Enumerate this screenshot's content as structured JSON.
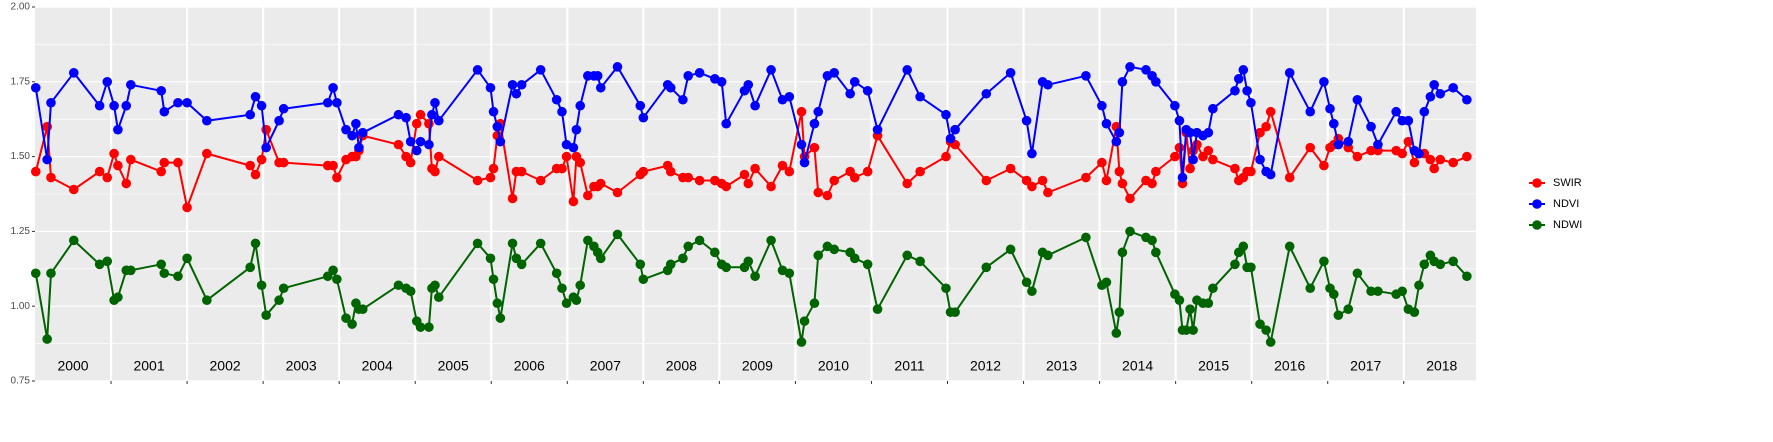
{
  "chart_data": {
    "type": "line",
    "year_labels": [
      "2000",
      "2001",
      "2002",
      "2003",
      "2004",
      "2005",
      "2006",
      "2007",
      "2008",
      "2009",
      "2010",
      "2011",
      "2012",
      "2013",
      "2014",
      "2015",
      "2016",
      "2017",
      "2018"
    ],
    "x": [
      2000.01,
      2000.16,
      2000.21,
      2000.51,
      2000.85,
      2000.95,
      2001.04,
      2001.09,
      2001.2,
      2001.26,
      2001.66,
      2001.7,
      2001.88,
      2002.0,
      2002.26,
      2002.83,
      2002.9,
      2002.98,
      2003.04,
      2003.21,
      2003.27,
      2003.85,
      2003.92,
      2003.97,
      2004.09,
      2004.17,
      2004.22,
      2004.26,
      2004.31,
      2004.78,
      2004.88,
      2004.94,
      2005.02,
      2005.07,
      2005.18,
      2005.22,
      2005.26,
      2005.31,
      2005.82,
      2005.99,
      2006.03,
      2006.08,
      2006.12,
      2006.28,
      2006.33,
      2006.4,
      2006.65,
      2006.86,
      2006.93,
      2006.99,
      2007.08,
      2007.12,
      2007.17,
      2007.27,
      2007.35,
      2007.4,
      2007.44,
      2007.66,
      2007.96,
      2008.0,
      2008.32,
      2008.36,
      2008.52,
      2008.59,
      2008.74,
      2008.94,
      2009.03,
      2009.09,
      2009.33,
      2009.38,
      2009.47,
      2009.68,
      2009.83,
      2009.92,
      2010.08,
      2010.12,
      2010.25,
      2010.3,
      2010.42,
      2010.51,
      2010.72,
      2010.78,
      2010.95,
      2011.08,
      2011.47,
      2011.64,
      2011.98,
      2012.04,
      2012.1,
      2012.51,
      2012.83,
      2013.04,
      2013.11,
      2013.25,
      2013.32,
      2013.82,
      2014.03,
      2014.09,
      2014.22,
      2014.26,
      2014.3,
      2014.4,
      2014.61,
      2014.69,
      2014.74,
      2014.99,
      2015.05,
      2015.09,
      2015.14,
      2015.19,
      2015.23,
      2015.28,
      2015.36,
      2015.43,
      2015.49,
      2015.78,
      2015.83,
      2015.89,
      2015.94,
      2015.99,
      2016.11,
      2016.19,
      2016.25,
      2016.5,
      2016.77,
      2016.95,
      2017.03,
      2017.08,
      2017.14,
      2017.27,
      2017.39,
      2017.57,
      2017.66,
      2017.9,
      2017.98,
      2018.06,
      2018.14,
      2018.2,
      2018.27,
      2018.35,
      2018.4,
      2018.48,
      2018.65,
      2018.83
    ],
    "series": [
      {
        "name": "SWIR",
        "color": "#ff0000",
        "values": [
          1.45,
          1.6,
          1.43,
          1.39,
          1.45,
          1.43,
          1.51,
          1.47,
          1.41,
          1.49,
          1.45,
          1.48,
          1.48,
          1.33,
          1.51,
          1.47,
          1.44,
          1.49,
          1.59,
          1.48,
          1.48,
          1.47,
          1.47,
          1.43,
          1.49,
          1.5,
          1.5,
          1.52,
          1.57,
          1.54,
          1.5,
          1.48,
          1.61,
          1.64,
          1.61,
          1.46,
          1.45,
          1.5,
          1.42,
          1.43,
          1.46,
          1.57,
          1.61,
          1.36,
          1.45,
          1.45,
          1.42,
          1.46,
          1.46,
          1.5,
          1.35,
          1.5,
          1.48,
          1.37,
          1.4,
          1.4,
          1.41,
          1.38,
          1.44,
          1.45,
          1.47,
          1.45,
          1.43,
          1.43,
          1.42,
          1.42,
          1.41,
          1.4,
          1.44,
          1.41,
          1.46,
          1.4,
          1.47,
          1.45,
          1.65,
          1.5,
          1.53,
          1.38,
          1.37,
          1.42,
          1.45,
          1.43,
          1.45,
          1.57,
          1.41,
          1.45,
          1.5,
          1.55,
          1.54,
          1.42,
          1.46,
          1.42,
          1.4,
          1.42,
          1.38,
          1.43,
          1.48,
          1.42,
          1.6,
          1.45,
          1.41,
          1.36,
          1.42,
          1.41,
          1.45,
          1.5,
          1.53,
          1.41,
          1.58,
          1.46,
          1.52,
          1.54,
          1.5,
          1.52,
          1.49,
          1.46,
          1.42,
          1.43,
          1.45,
          1.45,
          1.58,
          1.6,
          1.65,
          1.43,
          1.53,
          1.47,
          1.53,
          1.54,
          1.56,
          1.53,
          1.5,
          1.52,
          1.52,
          1.52,
          1.51,
          1.55,
          1.48,
          1.51,
          1.51,
          1.49,
          1.46,
          1.49,
          1.48,
          1.5
        ]
      },
      {
        "name": "NDVI",
        "color": "#0000ff",
        "values": [
          1.73,
          1.49,
          1.68,
          1.78,
          1.67,
          1.75,
          1.67,
          1.59,
          1.67,
          1.74,
          1.72,
          1.65,
          1.68,
          1.68,
          1.62,
          1.64,
          1.7,
          1.67,
          1.53,
          1.62,
          1.66,
          1.68,
          1.73,
          1.68,
          1.59,
          1.57,
          1.61,
          1.53,
          1.58,
          1.64,
          1.63,
          1.55,
          1.52,
          1.55,
          1.54,
          1.64,
          1.68,
          1.62,
          1.79,
          1.73,
          1.65,
          1.6,
          1.55,
          1.74,
          1.71,
          1.74,
          1.79,
          1.69,
          1.65,
          1.54,
          1.53,
          1.59,
          1.67,
          1.77,
          1.77,
          1.77,
          1.73,
          1.8,
          1.67,
          1.63,
          1.74,
          1.73,
          1.69,
          1.77,
          1.78,
          1.76,
          1.75,
          1.61,
          1.72,
          1.74,
          1.67,
          1.79,
          1.69,
          1.7,
          1.54,
          1.48,
          1.61,
          1.65,
          1.77,
          1.78,
          1.71,
          1.75,
          1.72,
          1.59,
          1.79,
          1.7,
          1.64,
          1.56,
          1.59,
          1.71,
          1.78,
          1.62,
          1.51,
          1.75,
          1.74,
          1.77,
          1.67,
          1.61,
          1.55,
          1.58,
          1.75,
          1.8,
          1.79,
          1.77,
          1.75,
          1.67,
          1.62,
          1.43,
          1.59,
          1.58,
          1.49,
          1.58,
          1.57,
          1.58,
          1.66,
          1.72,
          1.76,
          1.79,
          1.72,
          1.68,
          1.49,
          1.45,
          1.44,
          1.78,
          1.65,
          1.75,
          1.66,
          1.61,
          1.54,
          1.55,
          1.69,
          1.6,
          1.54,
          1.65,
          1.62,
          1.62,
          1.52,
          1.51,
          1.65,
          1.7,
          1.74,
          1.71,
          1.73,
          1.69
        ]
      },
      {
        "name": "NDWI",
        "color": "#006400",
        "values": [
          1.11,
          0.89,
          1.11,
          1.22,
          1.14,
          1.15,
          1.02,
          1.03,
          1.12,
          1.12,
          1.14,
          1.11,
          1.1,
          1.16,
          1.02,
          1.13,
          1.21,
          1.07,
          0.97,
          1.02,
          1.06,
          1.1,
          1.12,
          1.09,
          0.96,
          0.94,
          1.01,
          0.99,
          0.99,
          1.07,
          1.06,
          1.05,
          0.95,
          0.93,
          0.93,
          1.06,
          1.07,
          1.03,
          1.21,
          1.16,
          1.09,
          1.01,
          0.96,
          1.21,
          1.16,
          1.14,
          1.21,
          1.11,
          1.06,
          1.01,
          1.03,
          1.02,
          1.07,
          1.22,
          1.2,
          1.18,
          1.16,
          1.24,
          1.14,
          1.09,
          1.12,
          1.14,
          1.16,
          1.2,
          1.22,
          1.18,
          1.14,
          1.13,
          1.13,
          1.15,
          1.1,
          1.22,
          1.12,
          1.11,
          0.88,
          0.95,
          1.01,
          1.17,
          1.2,
          1.19,
          1.18,
          1.16,
          1.14,
          0.99,
          1.17,
          1.15,
          1.06,
          0.98,
          0.98,
          1.13,
          1.19,
          1.08,
          1.05,
          1.18,
          1.17,
          1.23,
          1.07,
          1.08,
          0.91,
          0.98,
          1.18,
          1.25,
          1.23,
          1.22,
          1.18,
          1.04,
          1.02,
          0.92,
          0.92,
          0.99,
          0.92,
          1.02,
          1.01,
          1.01,
          1.06,
          1.14,
          1.18,
          1.2,
          1.13,
          1.13,
          0.94,
          0.92,
          0.88,
          1.2,
          1.06,
          1.15,
          1.06,
          1.04,
          0.97,
          0.99,
          1.11,
          1.05,
          1.05,
          1.04,
          1.05,
          0.99,
          0.98,
          1.07,
          1.14,
          1.17,
          1.15,
          1.14,
          1.15,
          1.1
        ]
      }
    ],
    "xlim": [
      2000,
      2018.95
    ],
    "xticks": [
      2001,
      2002,
      2003,
      2004,
      2005,
      2006,
      2007,
      2008,
      2009,
      2010,
      2011,
      2012,
      2013,
      2014,
      2015,
      2016,
      2017,
      2018
    ],
    "ylim": [
      0.75,
      2.0
    ],
    "yticks": [
      {
        "value": 0.75,
        "label": "0.75"
      },
      {
        "value": 1.0,
        "label": "1.00"
      },
      {
        "value": 1.25,
        "label": "1.25"
      },
      {
        "value": 1.5,
        "label": "1.50"
      },
      {
        "value": 1.75,
        "label": "1.75"
      },
      {
        "value": 2.0,
        "label": "2.00"
      }
    ],
    "grid": true,
    "legend": "right"
  }
}
